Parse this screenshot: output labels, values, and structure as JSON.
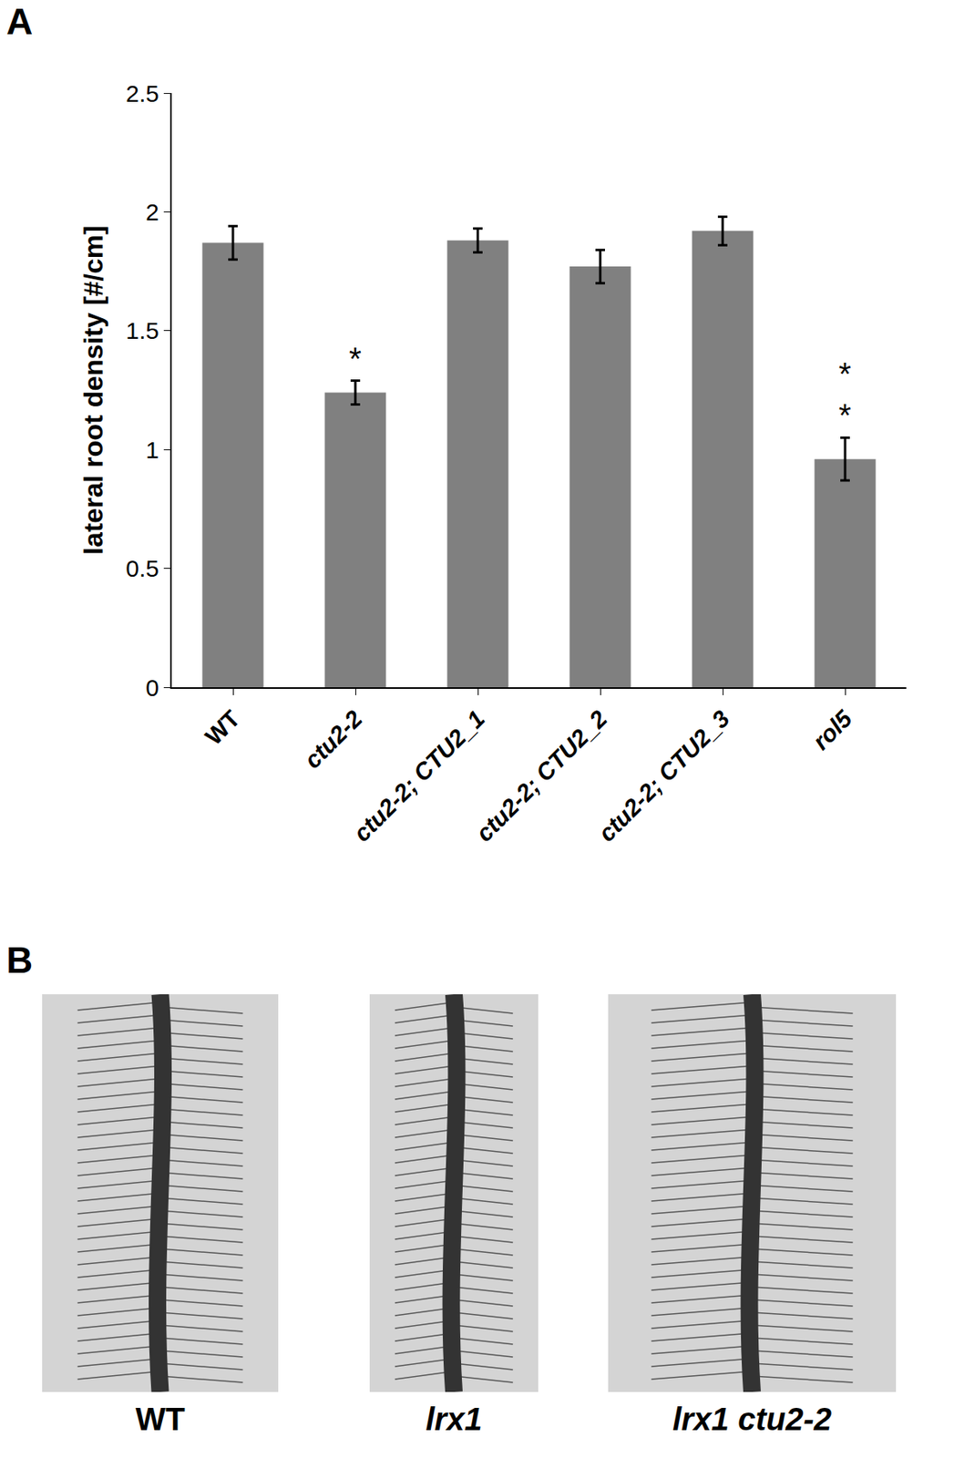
{
  "chart_data": {
    "type": "bar",
    "panel": "A",
    "categories": [
      "WT",
      "ctu2-2",
      "ctu2-2; CTU2_1",
      "ctu2-2; CTU2_2",
      "ctu2-2; CTU2_3",
      "rol5"
    ],
    "values": [
      1.87,
      1.24,
      1.88,
      1.77,
      1.92,
      0.96
    ],
    "errors": [
      0.07,
      0.05,
      0.05,
      0.07,
      0.06,
      0.09
    ],
    "color": "#808080",
    "y_label": "lateral root density [#/cm]",
    "ylim": [
      0,
      2.5
    ],
    "yticks": [
      0,
      0.5,
      1,
      1.5,
      2,
      2.5
    ],
    "grid": false,
    "annotations": [
      {
        "category": "ctu2-2",
        "text": "*"
      },
      {
        "category": "rol5",
        "text": "**"
      }
    ]
  },
  "panel_b": {
    "panel": "B",
    "images": [
      "WT",
      "lrx1",
      "lrx1 ctu2-2"
    ]
  }
}
